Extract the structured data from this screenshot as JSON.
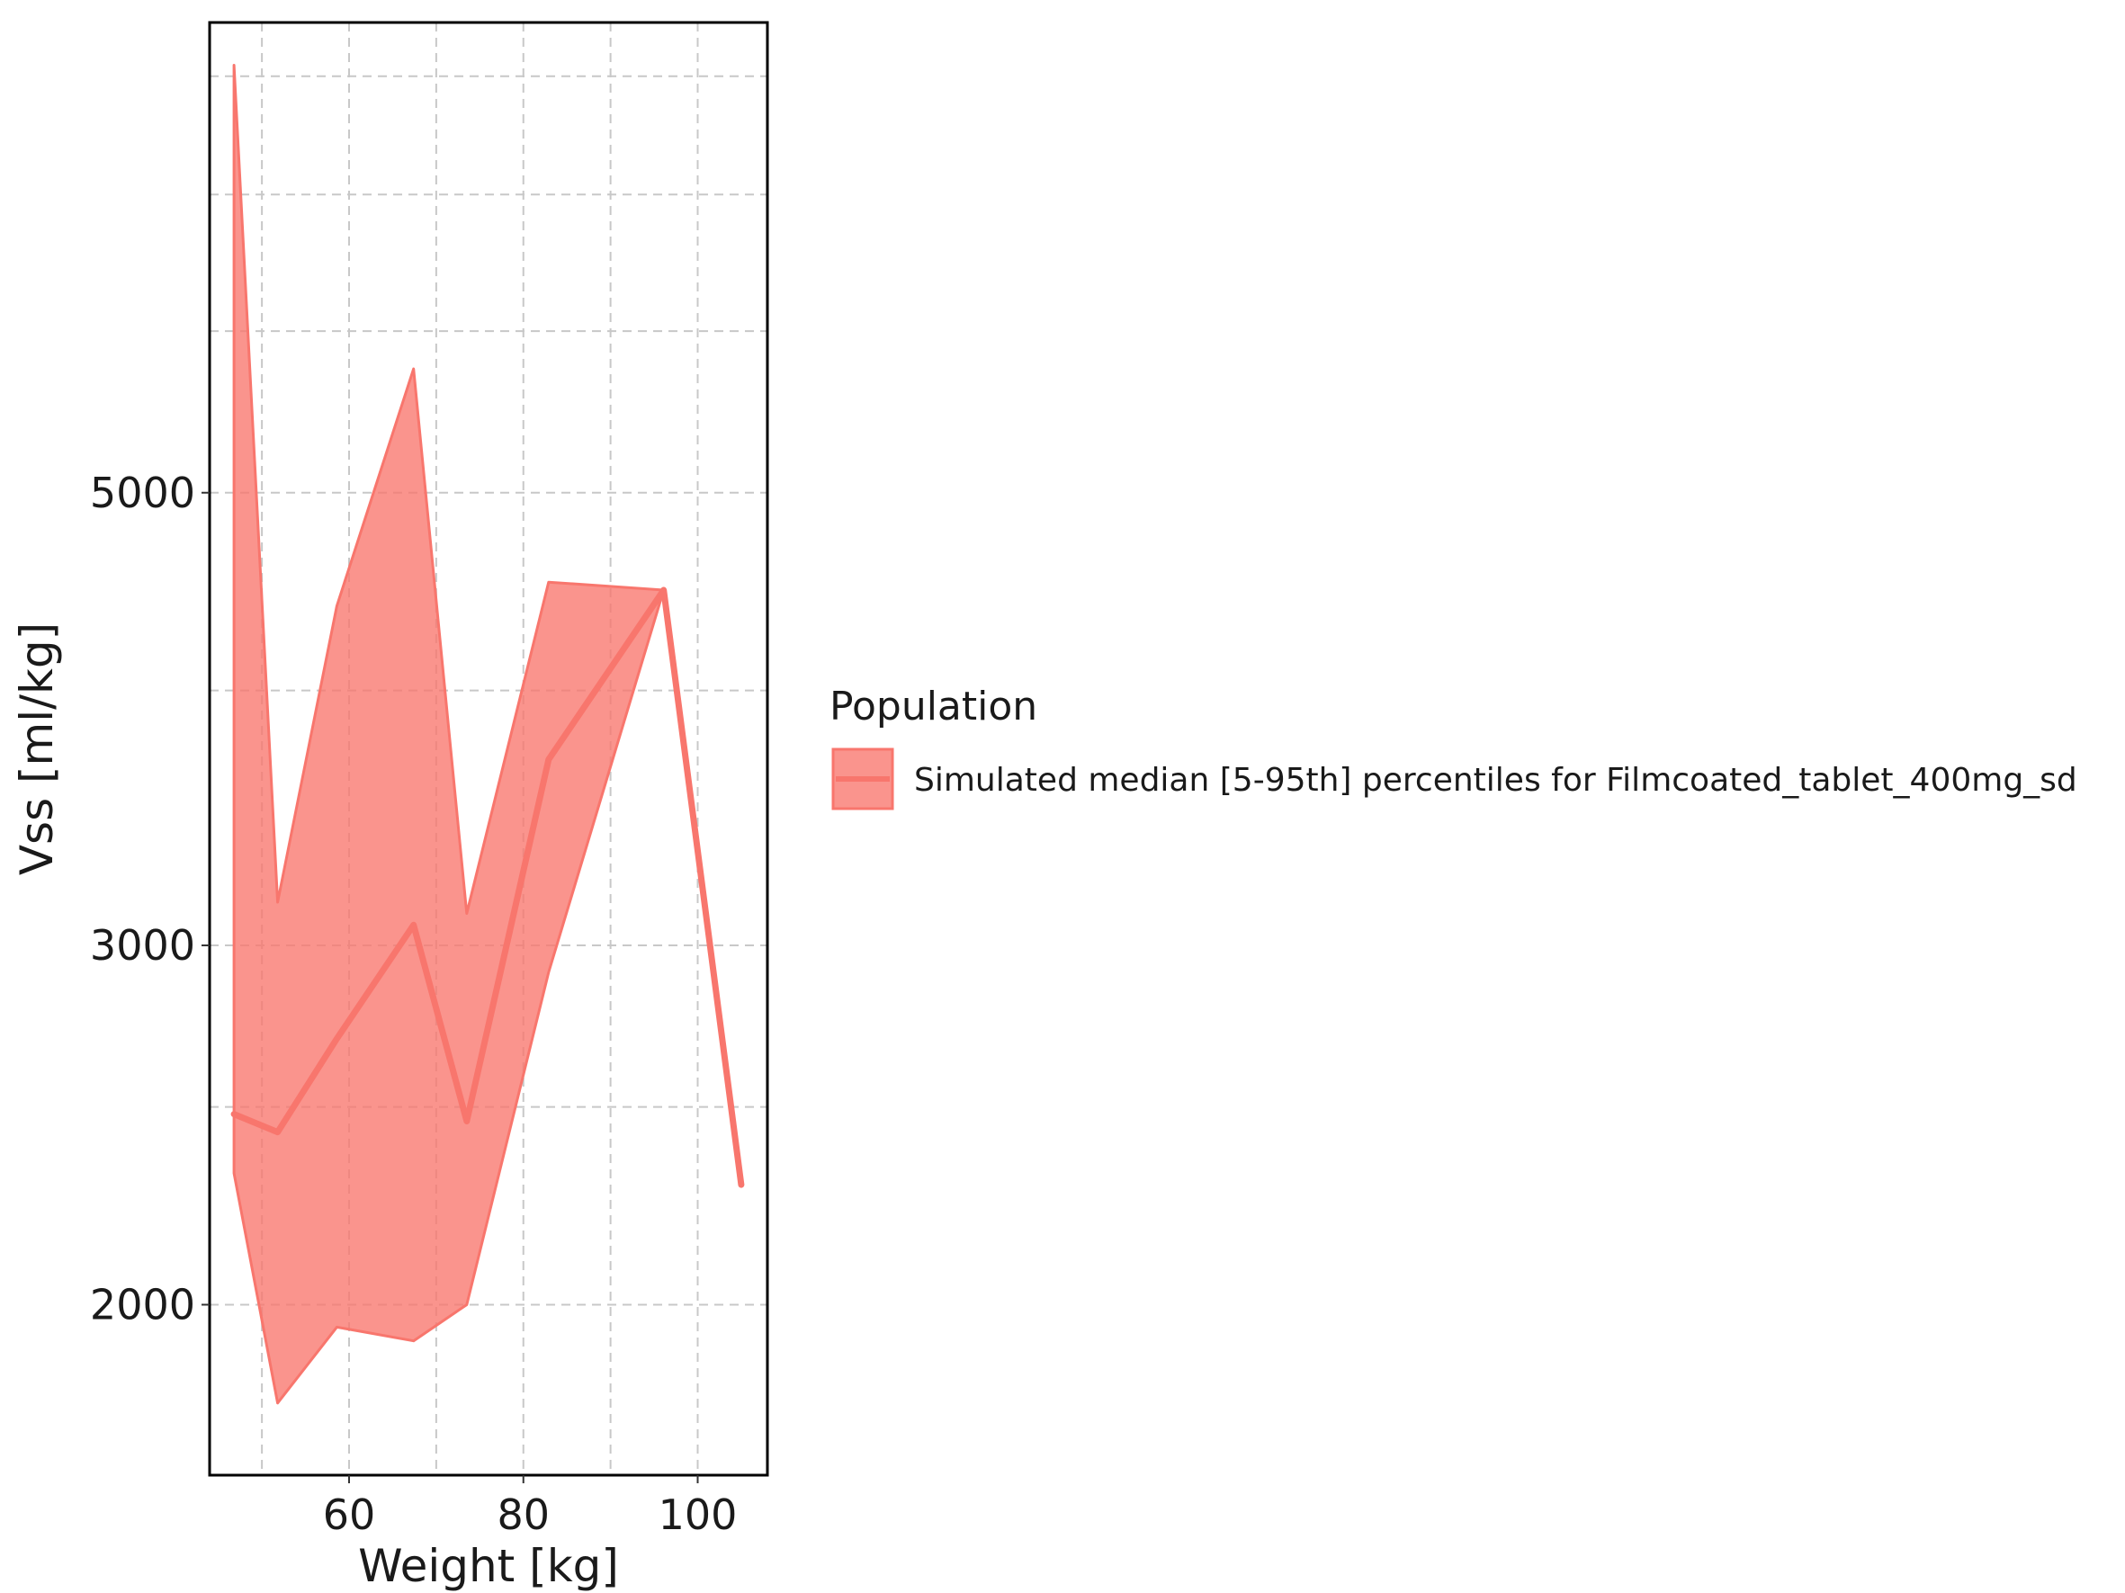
{
  "chart_data": {
    "type": "area",
    "xlabel": "Weight [kg]",
    "ylabel": "Vss [ml/kg]",
    "x_scale": "linear",
    "y_scale": "log",
    "xlim": [
      44,
      108
    ],
    "ylim": [
      1650,
      8500
    ],
    "x_ticks": [
      60,
      80,
      100
    ],
    "y_ticks": [
      2000,
      3000,
      5000
    ],
    "grid": true,
    "grid_style": "dashed",
    "legend": {
      "title": "Population",
      "position": "right",
      "entries": [
        "Simulated median [5-95th] percentiles for Filmcoated_tablet_400mg_sd"
      ]
    },
    "colors": {
      "fill": "#F8766D",
      "line": "#F8766D"
    },
    "series": [
      {
        "name": "Simulated median [5-95th] percentiles for Filmcoated_tablet_400mg_sd",
        "x": [
          46.8,
          51.8,
          58.6,
          67.4,
          73.5,
          82.9,
          96.1,
          105.0
        ],
        "median": [
          2480,
          2430,
          2700,
          3070,
          2460,
          3700,
          4480,
          2290
        ],
        "lower": [
          2320,
          1790,
          1950,
          1920,
          2000,
          2910,
          4480,
          2290
        ],
        "upper": [
          8100,
          3150,
          4400,
          5750,
          3110,
          4520,
          4480,
          2290
        ]
      }
    ]
  }
}
